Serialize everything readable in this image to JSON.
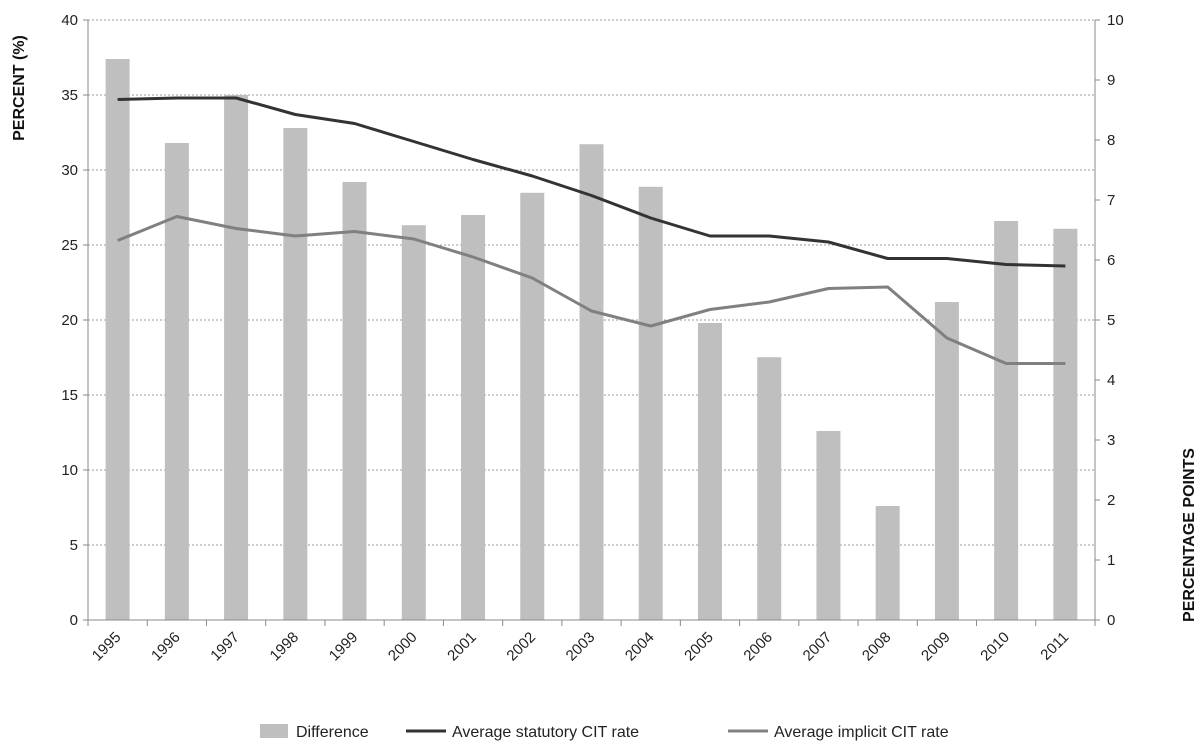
{
  "chart_data": {
    "type": "bar",
    "categories": [
      "1995",
      "1996",
      "1997",
      "1998",
      "1999",
      "2000",
      "2001",
      "2002",
      "2003",
      "2004",
      "2005",
      "2006",
      "2007",
      "2008",
      "2009",
      "2010",
      "2011"
    ],
    "title": "",
    "xlabel": "",
    "ylabel": "PERCENT (%)",
    "y2label": "PERCENTAGE POINTS",
    "ylim": [
      0,
      40
    ],
    "y2lim": [
      0,
      10
    ],
    "yticks": [
      0,
      5,
      10,
      15,
      20,
      25,
      30,
      35,
      40
    ],
    "y2ticks": [
      0,
      1,
      2,
      3,
      4,
      5,
      6,
      7,
      8,
      9,
      10
    ],
    "grid": true,
    "legend_position": "bottom",
    "series": [
      {
        "name": "Difference",
        "type": "bar",
        "axis": "right",
        "color": "#bfbfbf",
        "values": [
          9.35,
          7.95,
          8.75,
          8.2,
          7.3,
          6.58,
          6.75,
          7.12,
          7.93,
          7.22,
          4.95,
          4.38,
          3.15,
          1.9,
          5.3,
          6.65,
          6.52
        ]
      },
      {
        "name": "Average statutory CIT rate",
        "type": "line",
        "axis": "left",
        "color": "#333333",
        "values": [
          34.7,
          34.8,
          34.8,
          33.7,
          33.1,
          31.9,
          30.7,
          29.6,
          28.3,
          26.8,
          25.6,
          25.6,
          25.2,
          24.1,
          24.1,
          23.7,
          23.6
        ]
      },
      {
        "name": "Average implicit CIT rate",
        "type": "line",
        "axis": "left",
        "color": "#808080",
        "values": [
          25.3,
          26.9,
          26.1,
          25.6,
          25.9,
          25.4,
          24.2,
          22.8,
          20.6,
          19.6,
          20.7,
          21.2,
          22.1,
          22.2,
          18.8,
          17.1,
          17.1
        ]
      }
    ]
  }
}
